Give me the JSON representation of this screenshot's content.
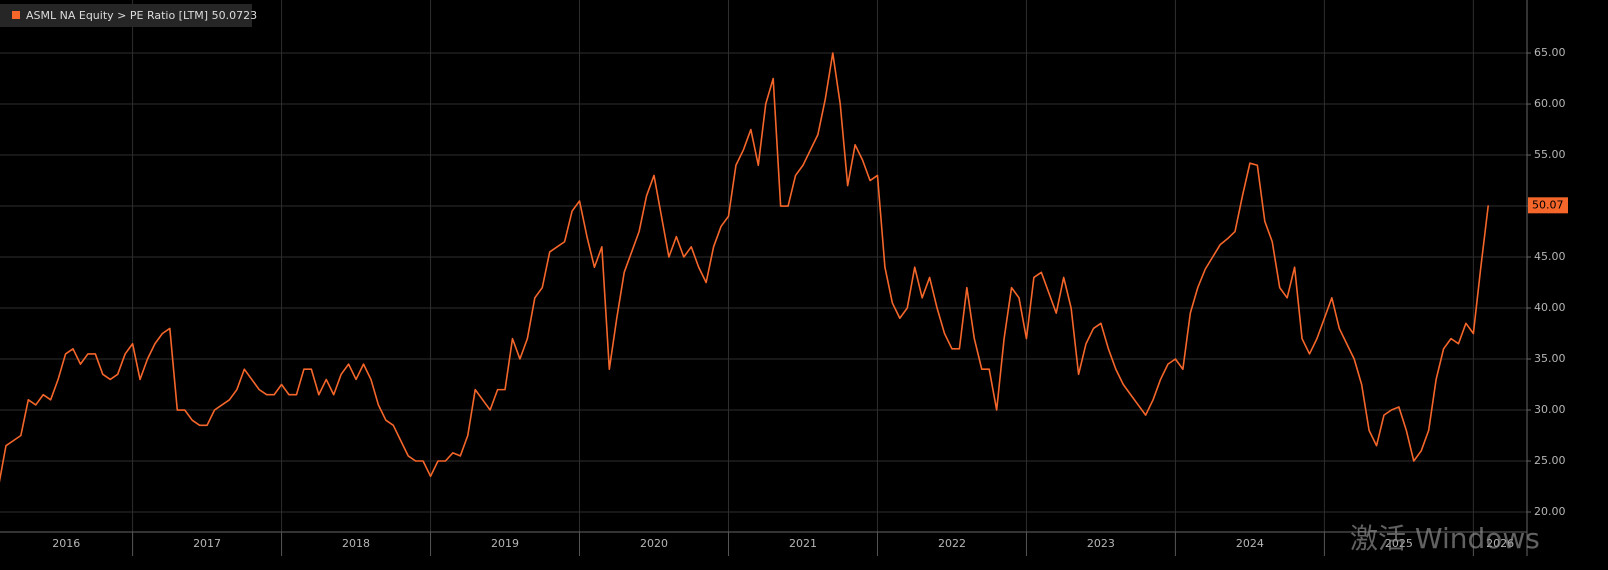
{
  "chart_data": {
    "type": "line",
    "legend_value": "50.0723",
    "last_value_label": "50.07",
    "watermark": "激活 Windows",
    "grid": true,
    "xlim": [
      2016.11,
      2026.36
    ],
    "ylim": [
      18.04,
      70.2
    ],
    "xticks": [
      2016,
      2017,
      2018,
      2019,
      2020,
      2021,
      2022,
      2023,
      2024,
      2025,
      2026
    ],
    "yticks": [
      {
        "value": 20,
        "label": "20.00"
      },
      {
        "value": 25,
        "label": "25.00"
      },
      {
        "value": 30,
        "label": "30.00"
      },
      {
        "value": 35,
        "label": "35.00"
      },
      {
        "value": 40,
        "label": "40.00"
      },
      {
        "value": 45,
        "label": "45.00"
      },
      {
        "value": 50,
        "label": "50.00"
      },
      {
        "value": 55,
        "label": "55.00"
      },
      {
        "value": 60,
        "label": "60.00"
      },
      {
        "value": 65,
        "label": "65.00"
      }
    ],
    "x": [
      2016.1,
      2016.15,
      2016.2,
      2016.25,
      2016.3,
      2016.35,
      2016.4,
      2016.45,
      2016.5,
      2016.55,
      2016.6,
      2016.65,
      2016.7,
      2016.75,
      2016.8,
      2016.85,
      2016.9,
      2016.95,
      2017,
      2017.05,
      2017.1,
      2017.15,
      2017.2,
      2017.25,
      2017.3,
      2017.35,
      2017.4,
      2017.45,
      2017.5,
      2017.55,
      2017.6,
      2017.65,
      2017.7,
      2017.75,
      2017.8,
      2017.85,
      2017.9,
      2017.95,
      2018,
      2018.05,
      2018.1,
      2018.15,
      2018.2,
      2018.25,
      2018.3,
      2018.35,
      2018.4,
      2018.45,
      2018.5,
      2018.55,
      2018.6,
      2018.65,
      2018.7,
      2018.75,
      2018.8,
      2018.85,
      2018.9,
      2018.95,
      2019,
      2019.05,
      2019.1,
      2019.15,
      2019.2,
      2019.25,
      2019.3,
      2019.35,
      2019.4,
      2019.45,
      2019.5,
      2019.55,
      2019.6,
      2019.65,
      2019.7,
      2019.75,
      2019.8,
      2019.85,
      2019.9,
      2019.95,
      2020,
      2020.05,
      2020.1,
      2020.15,
      2020.2,
      2020.25,
      2020.3,
      2020.35,
      2020.4,
      2020.45,
      2020.5,
      2020.55,
      2020.6,
      2020.65,
      2020.7,
      2020.75,
      2020.8,
      2020.85,
      2020.9,
      2020.95,
      2021,
      2021.05,
      2021.1,
      2021.15,
      2021.2,
      2021.25,
      2021.3,
      2021.35,
      2021.4,
      2021.45,
      2021.5,
      2021.55,
      2021.6,
      2021.65,
      2021.7,
      2021.75,
      2021.8,
      2021.85,
      2021.9,
      2021.95,
      2022,
      2022.05,
      2022.1,
      2022.15,
      2022.2,
      2022.25,
      2022.3,
      2022.35,
      2022.4,
      2022.45,
      2022.5,
      2022.55,
      2022.6,
      2022.65,
      2022.7,
      2022.75,
      2022.8,
      2022.85,
      2022.9,
      2022.95,
      2023,
      2023.05,
      2023.1,
      2023.15,
      2023.2,
      2023.25,
      2023.3,
      2023.35,
      2023.4,
      2023.45,
      2023.5,
      2023.55,
      2023.6,
      2023.65,
      2023.7,
      2023.75,
      2023.8,
      2023.85,
      2023.9,
      2023.95,
      2024,
      2024.05,
      2024.1,
      2024.15,
      2024.2,
      2024.25,
      2024.3,
      2024.35,
      2024.4,
      2024.45,
      2024.5,
      2024.55,
      2024.6,
      2024.65,
      2024.7,
      2024.75,
      2024.8,
      2024.85,
      2024.9,
      2024.95,
      2025,
      2025.05,
      2025.1,
      2025.15,
      2025.2,
      2025.25,
      2025.3,
      2025.35,
      2025.4,
      2025.45,
      2025.5,
      2025.55,
      2025.6,
      2025.65,
      2025.7,
      2025.75,
      2025.8,
      2025.85,
      2025.9,
      2025.95,
      2026,
      2026.05,
      2026.1
    ],
    "series": [
      {
        "name": "ASML NA Equity > PE Ratio [LTM]",
        "color": "#f5662a",
        "values": [
          22.5,
          26.5,
          27,
          27.5,
          31,
          30.5,
          31.5,
          31,
          33,
          35.5,
          36,
          34.5,
          35.5,
          35.5,
          33.5,
          33,
          33.5,
          35.5,
          36.5,
          33,
          35,
          36.5,
          37.5,
          38,
          30,
          30,
          29,
          28.5,
          28.5,
          30,
          30.5,
          31,
          32,
          34,
          33,
          32,
          31.5,
          31.5,
          32.5,
          31.5,
          31.5,
          34,
          34,
          31.5,
          33,
          31.5,
          33.5,
          34.5,
          33,
          34.5,
          33,
          30.5,
          29,
          28.5,
          27,
          25.5,
          25,
          25,
          23.5,
          25,
          25,
          25.8,
          25.5,
          27.5,
          32,
          31,
          30,
          32,
          32,
          37,
          35,
          37,
          41,
          42,
          45.5,
          46,
          46.5,
          49.5,
          50.5,
          47,
          44,
          46,
          34,
          39,
          43.5,
          45.5,
          47.5,
          51,
          53,
          49,
          45,
          47,
          45,
          46,
          44,
          42.5,
          46,
          48,
          49,
          54,
          55.5,
          57.5,
          54,
          60,
          62.5,
          50,
          50,
          53,
          54,
          55.5,
          57,
          60.5,
          65,
          60,
          52,
          56,
          54.5,
          52.5,
          53,
          44,
          40.5,
          39,
          40,
          44,
          41,
          43,
          40,
          37.5,
          36,
          36,
          42,
          37,
          34,
          34,
          30,
          37,
          42,
          41,
          37,
          43,
          43.5,
          41.5,
          39.5,
          43,
          40,
          33.5,
          36.5,
          38,
          38.5,
          36,
          34,
          32.5,
          31.5,
          30.5,
          29.5,
          31,
          33,
          34.5,
          35,
          34,
          39.5,
          42,
          43.8,
          45,
          46.2,
          46.8,
          47.5,
          51,
          54.2,
          54,
          48.5,
          46.5,
          42,
          41,
          44,
          37,
          35.5,
          37,
          39,
          41,
          38,
          36.5,
          35,
          32.5,
          28,
          26.5,
          29.5,
          30,
          30.3,
          28,
          25,
          26,
          28,
          33,
          36,
          37,
          36.5,
          38.5,
          37.5,
          44,
          50.07
        ]
      }
    ]
  }
}
